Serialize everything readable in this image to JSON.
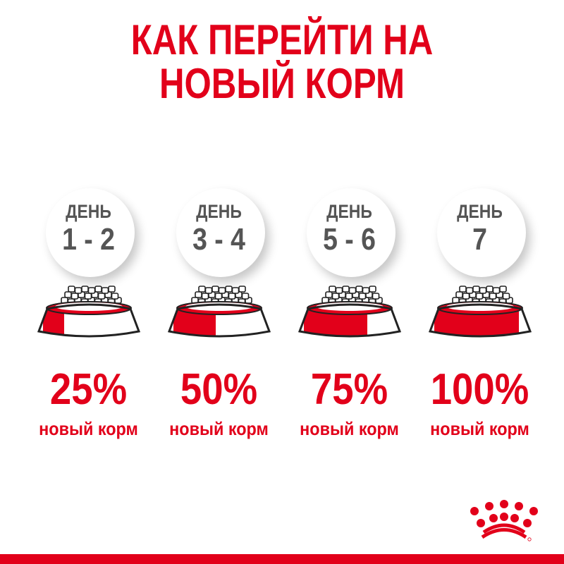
{
  "title": {
    "line1": "КАК ПЕРЕЙТИ НА",
    "line2": "НОВЫЙ КОРМ"
  },
  "steps": [
    {
      "day_label": "ДЕНЬ",
      "days": "1 - 2",
      "percent": "25%",
      "new_food_fraction": 0.25,
      "caption": "новый корм"
    },
    {
      "day_label": "ДЕНЬ",
      "days": "3 - 4",
      "percent": "50%",
      "new_food_fraction": 0.5,
      "caption": "новый корм"
    },
    {
      "day_label": "ДЕНЬ",
      "days": "5 - 6",
      "percent": "75%",
      "new_food_fraction": 0.75,
      "caption": "новый корм"
    },
    {
      "day_label": "ДЕНЬ",
      "days": "7",
      "percent": "100%",
      "new_food_fraction": 1.0,
      "caption": "новый корм"
    }
  ],
  "brand": {
    "logo": "royal-canin-crown-logo"
  },
  "colors": {
    "accent": "#e2001a",
    "day_text": "#555555"
  }
}
